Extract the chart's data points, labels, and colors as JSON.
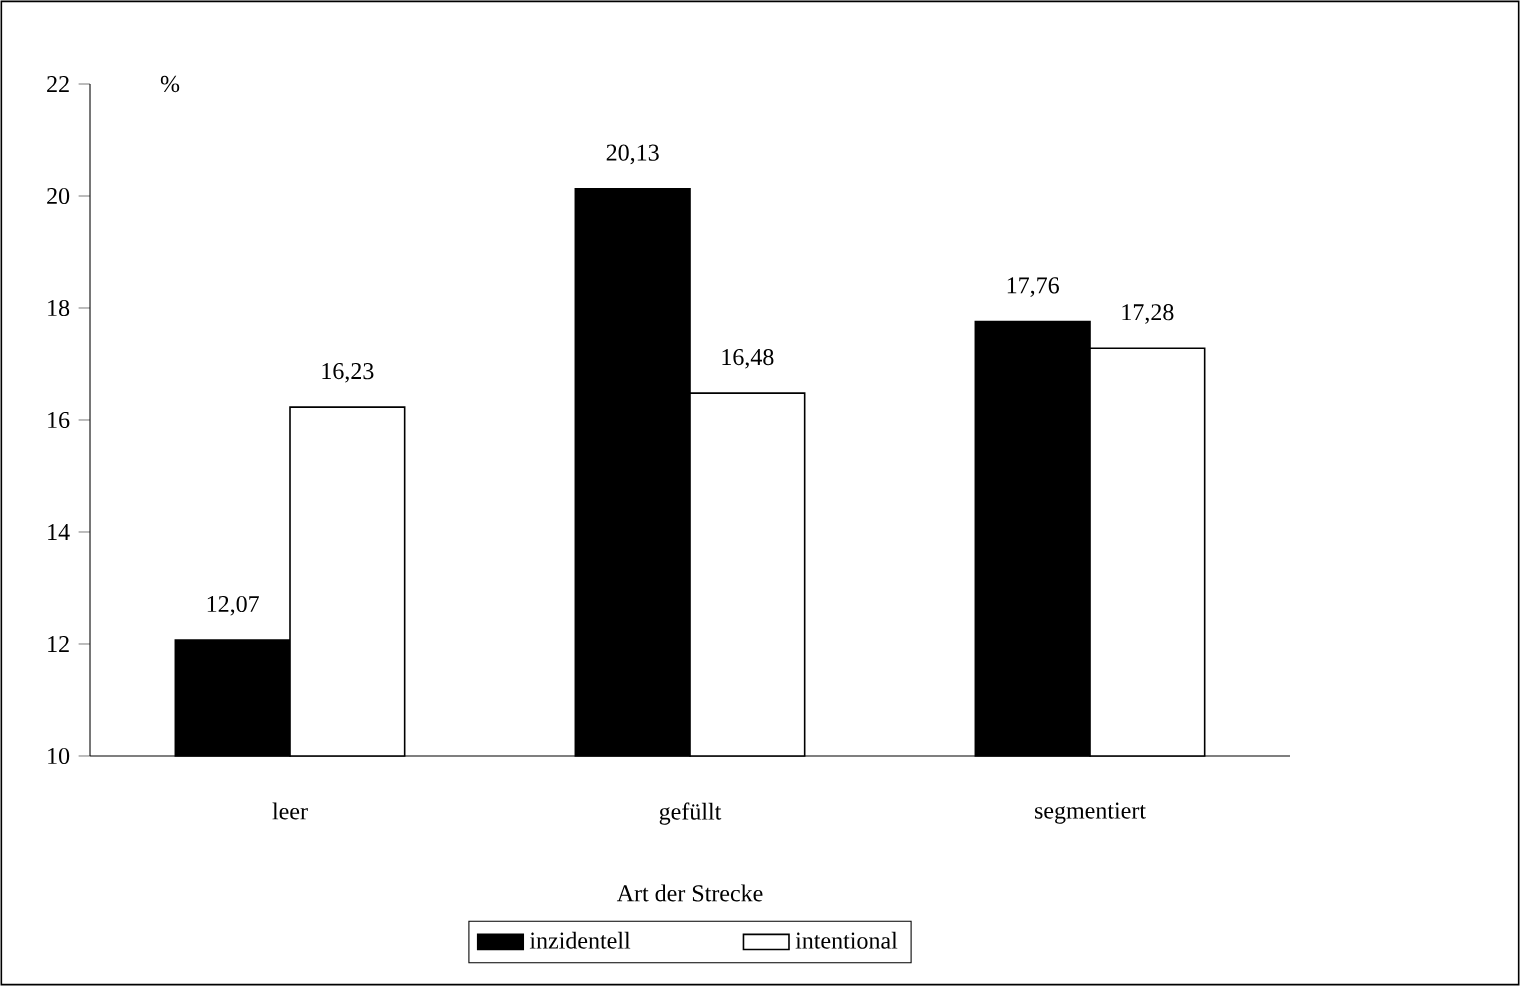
{
  "chart_data": {
    "type": "bar",
    "xlabel": "Art der Strecke",
    "ylabel": "%",
    "categories": [
      "leer",
      "gefüllt",
      "segmentiert"
    ],
    "series": [
      {
        "name": "inzidentell",
        "color": "#000000",
        "values": [
          12.07,
          20.13,
          17.76
        ],
        "value_labels": [
          "12,07",
          "20,13",
          "17,76"
        ]
      },
      {
        "name": "intentional",
        "color": "#ffffff",
        "values": [
          16.23,
          16.48,
          17.28
        ],
        "value_labels": [
          "16,23",
          "16,48",
          "17,28"
        ]
      }
    ],
    "ylim": [
      10,
      22
    ],
    "yticks": [
      10,
      12,
      14,
      16,
      18,
      20,
      22
    ],
    "grid": false,
    "legend": "bottom"
  }
}
